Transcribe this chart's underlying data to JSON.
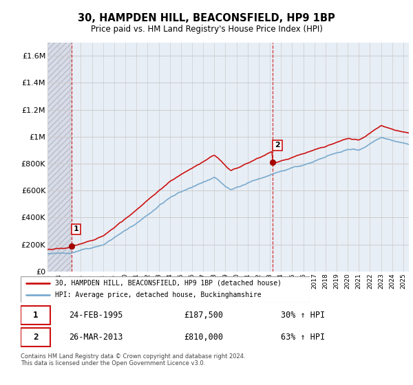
{
  "title": "30, HAMPDEN HILL, BEACONSFIELD, HP9 1BP",
  "subtitle": "Price paid vs. HM Land Registry's House Price Index (HPI)",
  "ylabel_ticks": [
    "£0",
    "£200K",
    "£400K",
    "£600K",
    "£800K",
    "£1M",
    "£1.2M",
    "£1.4M",
    "£1.6M"
  ],
  "ytick_values": [
    0,
    200000,
    400000,
    600000,
    800000,
    1000000,
    1200000,
    1400000,
    1600000
  ],
  "ylim": [
    0,
    1700000
  ],
  "sale1_x": 1995.15,
  "sale1_y": 187500,
  "sale1_label": "1",
  "sale2_x": 2013.23,
  "sale2_y": 810000,
  "sale2_label": "2",
  "hpi_line_color": "#7aabcf",
  "price_line_color": "#cc1111",
  "sale_dot_color": "#aa0000",
  "vline_color": "#cc1111",
  "grid_color": "#cccccc",
  "bg_hatch_color": "#dde0e8",
  "bg_plain_color": "#e8eef5",
  "legend_line1": "30, HAMPDEN HILL, BEACONSFIELD, HP9 1BP (detached house)",
  "legend_line2": "HPI: Average price, detached house, Buckinghamshire",
  "table_row1": [
    "1",
    "24-FEB-1995",
    "£187,500",
    "30% ↑ HPI"
  ],
  "table_row2": [
    "2",
    "26-MAR-2013",
    "£810,000",
    "63% ↑ HPI"
  ],
  "footnote": "Contains HM Land Registry data © Crown copyright and database right 2024.\nThis data is licensed under the Open Government Licence v3.0.",
  "xmin": 1993,
  "xmax": 2025.5
}
